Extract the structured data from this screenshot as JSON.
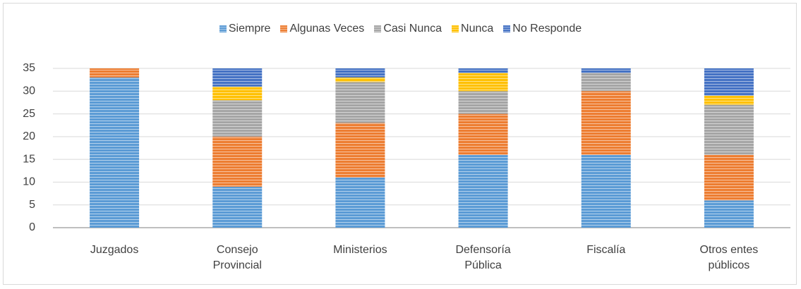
{
  "chart_data": {
    "type": "stacked_bar",
    "categories": [
      "Juzgados",
      "Consejo Provincial",
      "Ministerios",
      "Defensoría Pública",
      "Fiscalía",
      "Otros entes públicos"
    ],
    "series": [
      {
        "name": "Siempre",
        "color": "#5b9bd5",
        "values": [
          33,
          9,
          11,
          16,
          16,
          6
        ]
      },
      {
        "name": "Algunas Veces",
        "color": "#ed7d31",
        "values": [
          2,
          11,
          12,
          9,
          14,
          10
        ]
      },
      {
        "name": "Casi Nunca",
        "color": "#a5a5a5",
        "values": [
          0,
          8,
          9,
          5,
          4,
          11
        ]
      },
      {
        "name": "Nunca",
        "color": "#ffc000",
        "values": [
          0,
          3,
          1,
          4,
          0,
          2
        ]
      },
      {
        "name": "No Responde",
        "color": "#4472c4",
        "values": [
          0,
          4,
          2,
          1,
          1,
          6
        ]
      }
    ],
    "ylim": [
      0,
      35
    ],
    "yticks": [
      0,
      5,
      10,
      15,
      20,
      25,
      30,
      35
    ],
    "grid": true,
    "legend": "top"
  }
}
